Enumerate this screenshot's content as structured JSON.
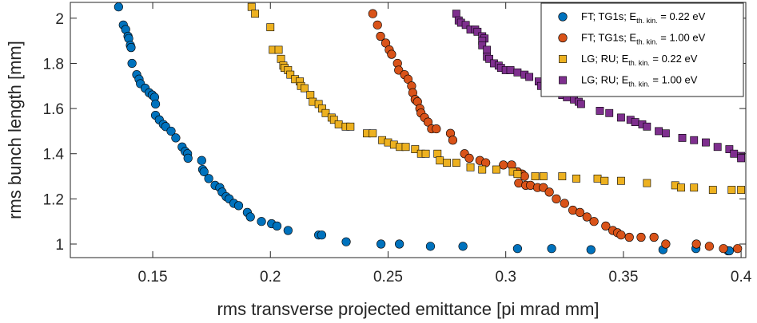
{
  "chart_data": {
    "type": "scatter",
    "xlabel": "rms transverse projected emittance [pi mrad mm]",
    "ylabel": "rms bunch length [mm]",
    "xlim": [
      0.115,
      0.402
    ],
    "ylim": [
      0.94,
      2.07
    ],
    "xticks": [
      0.15,
      0.2,
      0.25,
      0.3,
      0.35,
      0.4
    ],
    "xtick_labels": [
      "0.15",
      "0.2",
      "0.25",
      "0.3",
      "0.35",
      "0.4"
    ],
    "yticks": [
      1,
      1.2,
      1.4,
      1.6,
      1.8,
      2
    ],
    "ytick_labels": [
      "1",
      "1.2",
      "1.4",
      "1.6",
      "1.8",
      "2"
    ],
    "grid": false,
    "legend_position": "top-right",
    "series": [
      {
        "name": "FT; TG1s; E_th. kin. = 0.22 eV",
        "legend_main": "FT; TG1s; E",
        "legend_sub": "th. kin.",
        "legend_tail": " = 0.22 eV",
        "marker": "circle",
        "color": "#0072BD",
        "points": [
          [
            0.1355,
            2.05
          ],
          [
            0.1375,
            1.97
          ],
          [
            0.1385,
            1.95
          ],
          [
            0.1395,
            1.92
          ],
          [
            0.1398,
            1.91
          ],
          [
            0.1405,
            1.88
          ],
          [
            0.1408,
            1.87
          ],
          [
            0.1412,
            1.8
          ],
          [
            0.1432,
            1.75
          ],
          [
            0.1442,
            1.73
          ],
          [
            0.1448,
            1.71
          ],
          [
            0.1468,
            1.69
          ],
          [
            0.1485,
            1.67
          ],
          [
            0.1498,
            1.66
          ],
          [
            0.1508,
            1.65
          ],
          [
            0.1512,
            1.62
          ],
          [
            0.1512,
            1.57
          ],
          [
            0.1528,
            1.55
          ],
          [
            0.1545,
            1.53
          ],
          [
            0.1555,
            1.52
          ],
          [
            0.1578,
            1.5
          ],
          [
            0.1598,
            1.47
          ],
          [
            0.1625,
            1.43
          ],
          [
            0.1638,
            1.41
          ],
          [
            0.1648,
            1.4
          ],
          [
            0.165,
            1.38
          ],
          [
            0.1708,
            1.37
          ],
          [
            0.1712,
            1.33
          ],
          [
            0.1718,
            1.32
          ],
          [
            0.1738,
            1.29
          ],
          [
            0.1765,
            1.26
          ],
          [
            0.1785,
            1.25
          ],
          [
            0.1795,
            1.23
          ],
          [
            0.1812,
            1.21
          ],
          [
            0.1825,
            1.2
          ],
          [
            0.1845,
            1.18
          ],
          [
            0.1865,
            1.17
          ],
          [
            0.1902,
            1.14
          ],
          [
            0.1915,
            1.12
          ],
          [
            0.1962,
            1.1
          ],
          [
            0.2005,
            1.09
          ],
          [
            0.2028,
            1.08
          ],
          [
            0.2075,
            1.06
          ],
          [
            0.2205,
            1.04
          ],
          [
            0.2218,
            1.04
          ],
          [
            0.2322,
            1.01
          ],
          [
            0.247,
            1.0
          ],
          [
            0.2548,
            1.0
          ],
          [
            0.268,
            0.99
          ],
          [
            0.2818,
            0.99
          ],
          [
            0.305,
            0.98
          ],
          [
            0.3195,
            0.98
          ],
          [
            0.3362,
            0.975
          ],
          [
            0.3668,
            0.975
          ],
          [
            0.3808,
            0.98
          ],
          [
            0.3945,
            0.97
          ],
          [
            0.395,
            0.97
          ]
        ]
      },
      {
        "name": "FT; TG1s; E_th. kin. = 1.00 eV",
        "legend_main": "FT; TG1s; E",
        "legend_sub": "th. kin.",
        "legend_tail": " = 1.00 eV",
        "marker": "circle",
        "color": "#D95319",
        "points": [
          [
            0.2435,
            2.02
          ],
          [
            0.2455,
            1.97
          ],
          [
            0.2468,
            1.92
          ],
          [
            0.249,
            1.89
          ],
          [
            0.2505,
            1.86
          ],
          [
            0.2515,
            1.84
          ],
          [
            0.254,
            1.8
          ],
          [
            0.2545,
            1.77
          ],
          [
            0.257,
            1.75
          ],
          [
            0.2585,
            1.73
          ],
          [
            0.26,
            1.7
          ],
          [
            0.2605,
            1.67
          ],
          [
            0.2615,
            1.64
          ],
          [
            0.2625,
            1.63
          ],
          [
            0.2635,
            1.6
          ],
          [
            0.264,
            1.58
          ],
          [
            0.2655,
            1.56
          ],
          [
            0.267,
            1.54
          ],
          [
            0.2685,
            1.51
          ],
          [
            0.2705,
            1.51
          ],
          [
            0.2765,
            1.49
          ],
          [
            0.2775,
            1.46
          ],
          [
            0.2825,
            1.4
          ],
          [
            0.2845,
            1.38
          ],
          [
            0.289,
            1.37
          ],
          [
            0.2915,
            1.36
          ],
          [
            0.299,
            1.35
          ],
          [
            0.3025,
            1.35
          ],
          [
            0.305,
            1.32
          ],
          [
            0.307,
            1.31
          ],
          [
            0.308,
            1.3
          ],
          [
            0.3055,
            1.27
          ],
          [
            0.3085,
            1.26
          ],
          [
            0.3105,
            1.26
          ],
          [
            0.3135,
            1.25
          ],
          [
            0.316,
            1.25
          ],
          [
            0.3185,
            1.23
          ],
          [
            0.3215,
            1.2
          ],
          [
            0.325,
            1.18
          ],
          [
            0.3285,
            1.15
          ],
          [
            0.3315,
            1.14
          ],
          [
            0.3345,
            1.12
          ],
          [
            0.3375,
            1.1
          ],
          [
            0.3425,
            1.08
          ],
          [
            0.3455,
            1.06
          ],
          [
            0.3475,
            1.05
          ],
          [
            0.349,
            1.04
          ],
          [
            0.3525,
            1.03
          ],
          [
            0.3575,
            1.03
          ],
          [
            0.363,
            1.03
          ],
          [
            0.368,
            1.0
          ],
          [
            0.381,
            1.0
          ],
          [
            0.3865,
            0.99
          ],
          [
            0.3925,
            0.98
          ],
          [
            0.3985,
            0.98
          ]
        ]
      },
      {
        "name": "LG; RU; E_th. kin. = 0.22 eV",
        "legend_main": "LG; RU; E",
        "legend_sub": "th. kin.",
        "legend_tail": " = 0.22 eV",
        "marker": "square",
        "color": "#EDB120",
        "points": [
          [
            0.192,
            2.05
          ],
          [
            0.1935,
            2.02
          ],
          [
            0.2,
            1.96
          ],
          [
            0.201,
            1.86
          ],
          [
            0.2035,
            1.86
          ],
          [
            0.2045,
            1.82
          ],
          [
            0.2055,
            1.79
          ],
          [
            0.206,
            1.78
          ],
          [
            0.2075,
            1.77
          ],
          [
            0.2085,
            1.75
          ],
          [
            0.2105,
            1.73
          ],
          [
            0.2125,
            1.72
          ],
          [
            0.213,
            1.7
          ],
          [
            0.2145,
            1.69
          ],
          [
            0.217,
            1.66
          ],
          [
            0.218,
            1.63
          ],
          [
            0.2205,
            1.62
          ],
          [
            0.222,
            1.6
          ],
          [
            0.2235,
            1.58
          ],
          [
            0.226,
            1.56
          ],
          [
            0.227,
            1.55
          ],
          [
            0.229,
            1.53
          ],
          [
            0.232,
            1.52
          ],
          [
            0.234,
            1.52
          ],
          [
            0.241,
            1.49
          ],
          [
            0.2435,
            1.49
          ],
          [
            0.2475,
            1.46
          ],
          [
            0.25,
            1.45
          ],
          [
            0.2525,
            1.44
          ],
          [
            0.255,
            1.43
          ],
          [
            0.2575,
            1.43
          ],
          [
            0.2615,
            1.42
          ],
          [
            0.264,
            1.4
          ],
          [
            0.266,
            1.4
          ],
          [
            0.271,
            1.4
          ],
          [
            0.272,
            1.37
          ],
          [
            0.275,
            1.36
          ],
          [
            0.279,
            1.36
          ],
          [
            0.285,
            1.34
          ],
          [
            0.29,
            1.33
          ],
          [
            0.296,
            1.33
          ],
          [
            0.303,
            1.32
          ],
          [
            0.305,
            1.31
          ],
          [
            0.3125,
            1.3
          ],
          [
            0.316,
            1.3
          ],
          [
            0.324,
            1.3
          ],
          [
            0.33,
            1.29
          ],
          [
            0.339,
            1.29
          ],
          [
            0.342,
            1.28
          ],
          [
            0.349,
            1.28
          ],
          [
            0.36,
            1.27
          ],
          [
            0.372,
            1.26
          ],
          [
            0.3745,
            1.25
          ],
          [
            0.38,
            1.25
          ],
          [
            0.388,
            1.24
          ],
          [
            0.396,
            1.24
          ],
          [
            0.4,
            1.24
          ]
        ]
      },
      {
        "name": "LG; RU; E_th. kin. = 1.00 eV",
        "legend_main": "LG; RU; E",
        "legend_sub": "th. kin.",
        "legend_tail": " = 1.00 eV",
        "marker": "square",
        "color": "#7E2F8E",
        "points": [
          [
            0.279,
            2.02
          ],
          [
            0.28,
            1.99
          ],
          [
            0.281,
            1.98
          ],
          [
            0.283,
            1.97
          ],
          [
            0.285,
            1.95
          ],
          [
            0.287,
            1.95
          ],
          [
            0.288,
            1.94
          ],
          [
            0.29,
            1.92
          ],
          [
            0.291,
            1.91
          ],
          [
            0.29,
            1.9
          ],
          [
            0.29,
            1.88
          ],
          [
            0.292,
            1.86
          ],
          [
            0.292,
            1.83
          ],
          [
            0.293,
            1.82
          ],
          [
            0.295,
            1.8
          ],
          [
            0.297,
            1.79
          ],
          [
            0.298,
            1.78
          ],
          [
            0.3,
            1.77
          ],
          [
            0.302,
            1.77
          ],
          [
            0.305,
            1.76
          ],
          [
            0.308,
            1.75
          ],
          [
            0.31,
            1.74
          ],
          [
            0.314,
            1.72
          ],
          [
            0.315,
            1.7
          ],
          [
            0.32,
            1.68
          ],
          [
            0.324,
            1.66
          ],
          [
            0.326,
            1.65
          ],
          [
            0.329,
            1.64
          ],
          [
            0.331,
            1.63
          ],
          [
            0.332,
            1.62
          ],
          [
            0.34,
            1.59
          ],
          [
            0.344,
            1.58
          ],
          [
            0.349,
            1.56
          ],
          [
            0.353,
            1.55
          ],
          [
            0.355,
            1.54
          ],
          [
            0.358,
            1.53
          ],
          [
            0.36,
            1.52
          ],
          [
            0.365,
            1.5
          ],
          [
            0.368,
            1.49
          ],
          [
            0.375,
            1.47
          ],
          [
            0.38,
            1.46
          ],
          [
            0.385,
            1.45
          ],
          [
            0.39,
            1.43
          ],
          [
            0.395,
            1.42
          ],
          [
            0.397,
            1.4
          ],
          [
            0.4,
            1.39
          ],
          [
            0.4,
            1.38
          ]
        ]
      }
    ]
  }
}
